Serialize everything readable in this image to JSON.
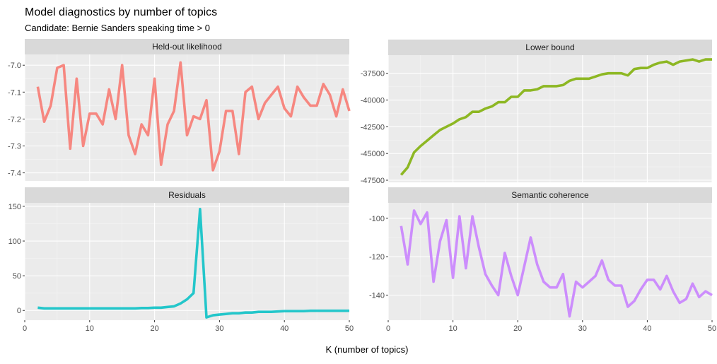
{
  "title": "Model diagnostics by number of topics",
  "subtitle": "Candidate: Bernie Sanders speaking time >  0",
  "xlabel": "K (number of topics)",
  "chart_data": [
    {
      "type": "line",
      "panel": "Held-out likelihood",
      "color": "#F8766D",
      "xlim": [
        0,
        50
      ],
      "ylim": [
        -7.43,
        -6.96
      ],
      "xticks": [
        0,
        10,
        20,
        30,
        40,
        50
      ],
      "yticks": [
        -7.0,
        -7.1,
        -7.2,
        -7.3,
        -7.4
      ],
      "yticklabels": [
        "-7.0",
        "-7.1",
        "-7.2",
        "-7.3",
        "-7.4"
      ],
      "x": [
        2,
        3,
        4,
        5,
        6,
        7,
        8,
        9,
        10,
        11,
        12,
        13,
        14,
        15,
        16,
        17,
        18,
        19,
        20,
        21,
        22,
        23,
        24,
        25,
        26,
        27,
        28,
        29,
        30,
        31,
        32,
        33,
        34,
        35,
        36,
        37,
        38,
        39,
        40,
        41,
        42,
        43,
        44,
        45,
        46,
        47,
        48,
        49,
        50
      ],
      "y": [
        -7.08,
        -7.21,
        -7.15,
        -7.01,
        -7.0,
        -7.31,
        -7.05,
        -7.3,
        -7.18,
        -7.18,
        -7.22,
        -7.09,
        -7.2,
        -7.0,
        -7.26,
        -7.33,
        -7.22,
        -7.26,
        -7.05,
        -7.37,
        -7.22,
        -7.17,
        -6.99,
        -7.26,
        -7.19,
        -7.2,
        -7.13,
        -7.39,
        -7.32,
        -7.17,
        -7.17,
        -7.33,
        -7.1,
        -7.08,
        -7.2,
        -7.14,
        -7.11,
        -7.08,
        -7.16,
        -7.19,
        -7.08,
        -7.12,
        -7.15,
        -7.15,
        -7.07,
        -7.11,
        -7.19,
        -7.09,
        -7.17
      ]
    },
    {
      "type": "line",
      "panel": "Lower bound",
      "color": "#7CAE00",
      "xlim": [
        0,
        50
      ],
      "ylim": [
        -47700,
        -35800
      ],
      "xticks": [
        0,
        10,
        20,
        30,
        40,
        50
      ],
      "yticks": [
        -37500,
        -40000,
        -42500,
        -45000,
        -47500
      ],
      "yticklabels": [
        "-37500",
        "-40000",
        "-42500",
        "-45000",
        "-47500"
      ],
      "x": [
        2,
        3,
        4,
        5,
        6,
        7,
        8,
        9,
        10,
        11,
        12,
        13,
        14,
        15,
        16,
        17,
        18,
        19,
        20,
        21,
        22,
        23,
        24,
        25,
        26,
        27,
        28,
        29,
        30,
        31,
        32,
        33,
        34,
        35,
        36,
        37,
        38,
        39,
        40,
        41,
        42,
        43,
        44,
        45,
        46,
        47,
        48,
        49,
        50
      ],
      "y": [
        -47000,
        -46300,
        -44900,
        -44300,
        -43800,
        -43300,
        -42800,
        -42500,
        -42200,
        -41800,
        -41600,
        -41100,
        -41100,
        -40800,
        -40600,
        -40200,
        -40200,
        -39700,
        -39700,
        -39100,
        -39100,
        -39000,
        -38700,
        -38700,
        -38700,
        -38600,
        -38200,
        -38000,
        -38000,
        -38000,
        -37800,
        -37600,
        -37500,
        -37500,
        -37500,
        -37700,
        -37100,
        -37000,
        -37000,
        -36700,
        -36500,
        -36400,
        -36700,
        -36400,
        -36300,
        -36200,
        -36400,
        -36200,
        -36200
      ]
    },
    {
      "type": "line",
      "panel": "Residuals",
      "color": "#00BFC4",
      "xlim": [
        0,
        50
      ],
      "ylim": [
        -14,
        155
      ],
      "xticks": [
        0,
        10,
        20,
        30,
        40,
        50
      ],
      "yticks": [
        150,
        100,
        50,
        0
      ],
      "yticklabels": [
        "150",
        "100",
        "50",
        "0"
      ],
      "x": [
        2,
        3,
        4,
        5,
        6,
        7,
        8,
        9,
        10,
        11,
        12,
        13,
        14,
        15,
        16,
        17,
        18,
        19,
        20,
        21,
        22,
        23,
        24,
        25,
        26,
        27,
        28,
        29,
        30,
        31,
        32,
        33,
        34,
        35,
        36,
        37,
        38,
        39,
        40,
        41,
        42,
        43,
        44,
        45,
        46,
        47,
        48,
        49,
        50
      ],
      "y": [
        4,
        3,
        3,
        3,
        3,
        3,
        3,
        3,
        3,
        3,
        3,
        3,
        3,
        3,
        3,
        3,
        3.5,
        3.5,
        4,
        4,
        5,
        6,
        10,
        16,
        25,
        146,
        -10,
        -7,
        -6,
        -5,
        -4,
        -4,
        -3,
        -3,
        -2,
        -2,
        -2,
        -1.5,
        -1,
        -1,
        -1,
        -1,
        -0.5,
        -0.5,
        -0.5,
        -0.5,
        -0.5,
        -0.5,
        -0.5
      ]
    },
    {
      "type": "line",
      "panel": "Semantic coherence",
      "color": "#C77CFF",
      "xlim": [
        0,
        50
      ],
      "ylim": [
        -153,
        -92
      ],
      "xticks": [
        0,
        10,
        20,
        30,
        40,
        50
      ],
      "yticks": [
        -100,
        -120,
        -140
      ],
      "yticklabels": [
        "-100",
        "-120",
        "-140"
      ],
      "x": [
        2,
        3,
        4,
        5,
        6,
        7,
        8,
        9,
        10,
        11,
        12,
        13,
        14,
        15,
        16,
        17,
        18,
        19,
        20,
        21,
        22,
        23,
        24,
        25,
        26,
        27,
        28,
        29,
        30,
        31,
        32,
        33,
        34,
        35,
        36,
        37,
        38,
        39,
        40,
        41,
        42,
        43,
        44,
        45,
        46,
        47,
        48,
        49,
        50
      ],
      "y": [
        -104,
        -124,
        -96,
        -103,
        -97,
        -133,
        -112,
        -101,
        -131,
        -99,
        -126,
        -99,
        -115,
        -129,
        -135,
        -140,
        -118,
        -130,
        -140,
        -125,
        -110,
        -124,
        -133,
        -136,
        -136,
        -129,
        -151,
        -133,
        -136,
        -133,
        -130,
        -122,
        -132,
        -135,
        -135,
        -146,
        -143,
        -137,
        -132,
        -132,
        -137,
        -130,
        -138,
        -144,
        -142,
        -134,
        -141,
        -138,
        -140
      ]
    }
  ]
}
